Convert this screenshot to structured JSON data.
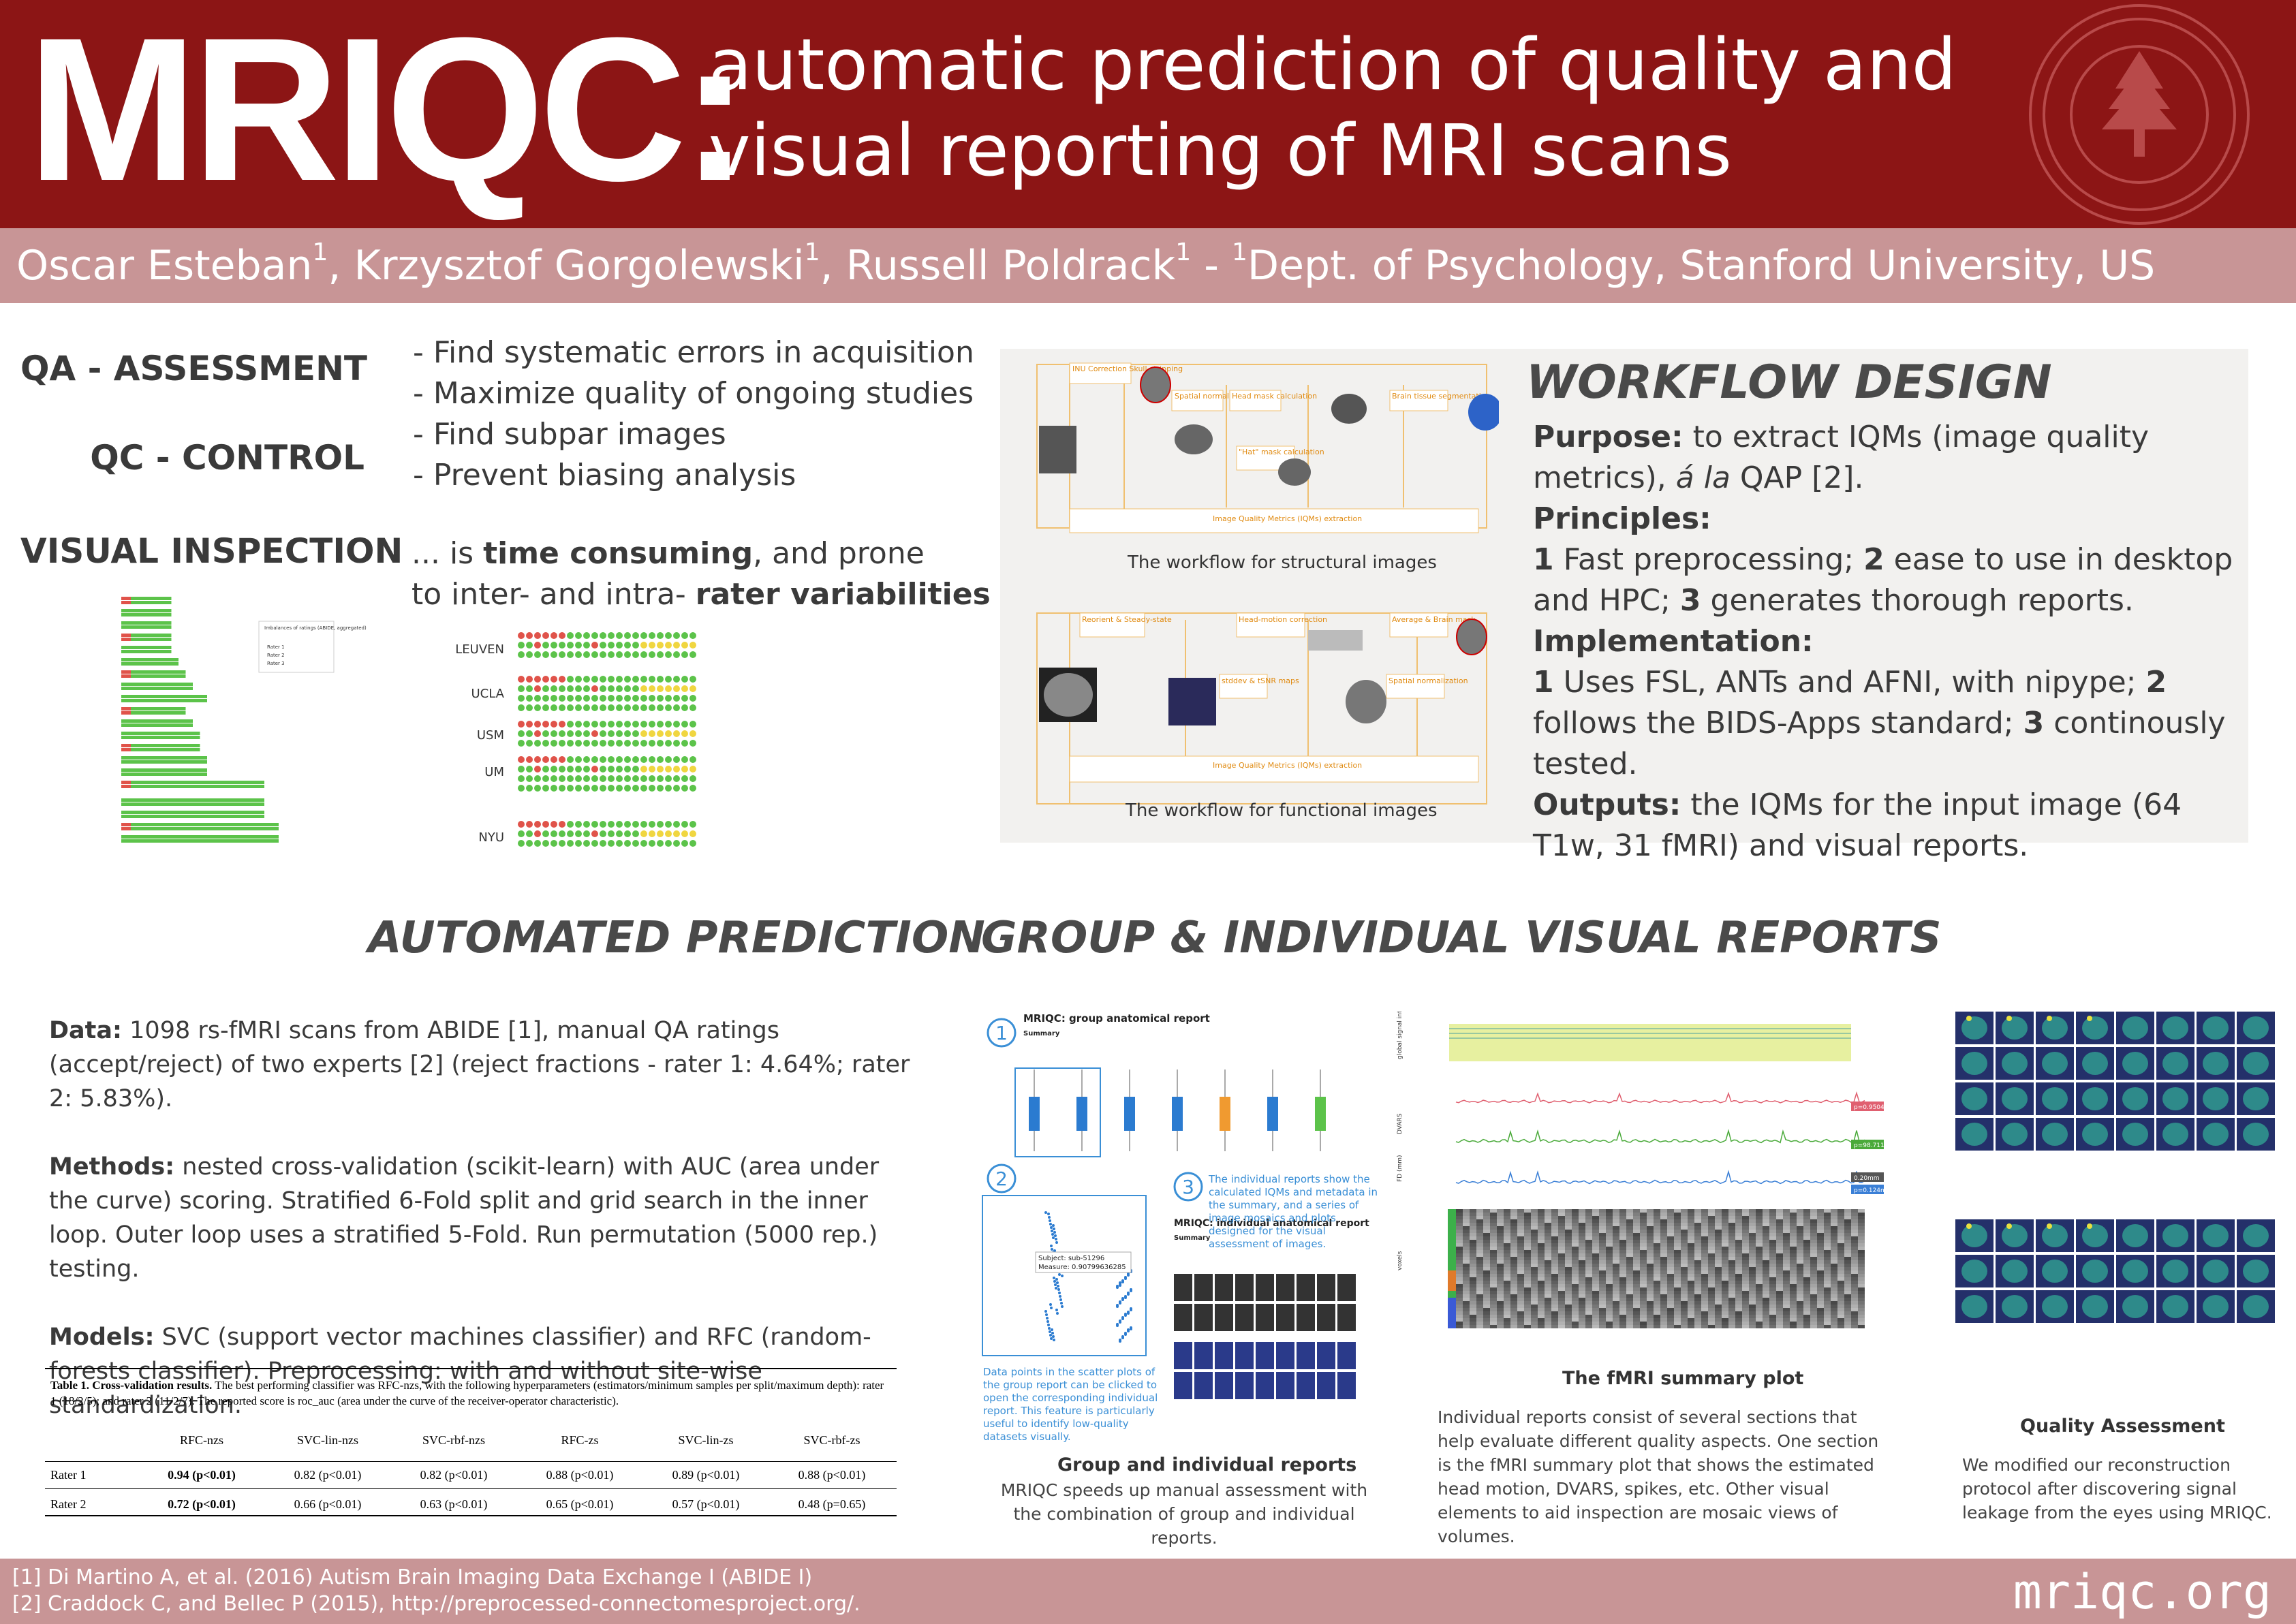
{
  "header": {
    "title": "MRIQC:",
    "subtitle": "automatic prediction of quality and visual reporting of MRI scans"
  },
  "authors": {
    "a1": "Oscar Esteban",
    "a2": ", Krzysztof Gorgolewski",
    "a3": ", Russell Poldrack",
    "a4": " - ",
    "a5": "Dept. of Psychology, Stanford University, US",
    "sup": "1"
  },
  "intro": {
    "qa_label": "QA - ASSESSMENT",
    "qc_label": "QC - CONTROL",
    "vi_label": "VISUAL INSPECTION",
    "bullets": [
      "- Find systematic errors in acquisition",
      "- Maximize quality of ongoing studies",
      "- Find subpar images",
      "- Prevent biasing analysis"
    ],
    "inspection_1": "... is ",
    "inspection_bold1": "time consuming",
    "inspection_2": ", and prone",
    "inspection_3": "to inter- and intra-  ",
    "inspection_bold2": "rater variabilities"
  },
  "ratings_figure": {
    "sites": [
      "LEUVEN",
      "UCLA",
      "USM",
      "UM",
      "NYU"
    ],
    "legend_title": "Imbalances of ratings (ABIDE, aggregated)",
    "legend_rows": [
      "Rater 1",
      "Rater 2",
      "Rater 3"
    ]
  },
  "workflow": {
    "title": "WORKFLOW DESIGN",
    "purpose_label": "Purpose:",
    "purpose_text": " to extract IQMs (image quality metrics), ",
    "purpose_italic": "á la",
    "purpose_end": " QAP [2].",
    "principles_label": "Principles:",
    "p1": " Fast preprocessing; ",
    "p2": " ease to use in desktop and HPC; ",
    "p3": " generates thorough reports.",
    "implementation_label": "Implementation:",
    "i1": " Uses FSL, ANTs and AFNI, with nipype; ",
    "i2": " follows the BIDS-Apps standard; ",
    "i3": " continously tested.",
    "outputs_label": "Outputs:",
    "outputs_text": " the IQMs for the input image (64 T1w, 31 fMRI) and visual reports.",
    "n1": "1",
    "n2": "2",
    "n3": "3",
    "struct_caption": "The workflow for structural images",
    "func_caption": "The workflow for functional images",
    "struct_nodes": [
      "INU Correction Skull-stripping",
      "Spatial normalization",
      "Head mask calculation",
      "Brain tissue segmentation",
      "\"Hat\" mask calculation",
      "Image Quality Metrics (IQMs) extraction"
    ],
    "func_nodes": [
      "Reorient & Steady-state",
      "Head-motion correction",
      "Average & Brain mask",
      "stddev & tSNR maps",
      "Spatial normalization",
      "Image Quality Metrics (IQMs) extraction"
    ]
  },
  "automated": {
    "title": "AUTOMATED PREDICTION",
    "data_label": "Data:",
    "data_text": " 1098 rs-fMRI scans from ABIDE [1], manual QA ratings  (accept/reject) of two experts [2] (reject fractions - rater 1: 4.64%; rater 2: 5.83%).",
    "methods_label": "Methods:",
    "methods_text": "  nested cross-validation (scikit-learn) with AUC (area under the curve) scoring. Stratified 6-Fold split and grid search in the inner loop. Outer loop uses a stratified 5-Fold. Run permutation (5000 rep.) testing.",
    "models_label": "Models:",
    "models_text": " SVC (support vector machines classifier) and RFC (random-forests classifier). Preprocessing: with and without site-wise standardization.",
    "table": {
      "caption_bold": "Table 1. Cross-validation results.",
      "caption_text": " The best performing classifier was RFC-nzs, with the following hyperparameters (estimators/minimum samples per split/maximum depth): rater 1 (18/2/5); and rater 2 (11/2/7). The reported score is roc_auc (area under the curve of the receiver-operator characteristic).",
      "columns": [
        "RFC-nzs",
        "SVC-lin-nzs",
        "SVC-rbf-nzs",
        "RFC-zs",
        "SVC-lin-zs",
        "SVC-rbf-zs"
      ],
      "rows": [
        {
          "label": "Rater 1",
          "cells": [
            "0.94 (p<0.01)",
            "0.82 (p<0.01)",
            "0.82 (p<0.01)",
            "0.88 (p<0.01)",
            "0.89 (p<0.01)",
            "0.88 (p<0.01)"
          ]
        },
        {
          "label": "Rater 2",
          "cells": [
            "0.72 (p<0.01)",
            "0.66 (p<0.01)",
            "0.63 (p<0.01)",
            "0.65 (p<0.01)",
            "0.57 (p<0.01)",
            "0.48 (p=0.65)"
          ]
        }
      ]
    }
  },
  "reports": {
    "title": "GROUP & INDIVIDUAL VISUAL REPORTS",
    "group_report_title": "MRIQC: group anatomical report",
    "summary": "Summary",
    "individual_report_title": "MRIQC: individual anatomical report",
    "note_3": "The individual reports show the calculated IQMs and metadata in the summary, and a series of image mosaics and plots designed for the visual assessment of images.",
    "note_2": "Data points in the scatter plots of the group report can be clicked to open the corresponding individual report. This feature is particularly useful to identify low-quality datasets visually.",
    "tooltip_subject": "Subject: sub-51296",
    "tooltip_measure": "Measure: 0.90799636285",
    "circle_1": "1",
    "circle_2": "2",
    "circle_3": "3",
    "group_head": "Group and individual reports",
    "group_text": "MRIQC speeds up manual assessment with the combination of group and individual reports.",
    "fmri_head": "The fMRI summary plot",
    "fmri_text": "Individual reports consist of several sections that help evaluate different quality aspects. One section is the fMRI summary plot that shows the estimated head motion, DVARS, spikes, etc. Other visual elements to aid inspection are mosaic views of volumes.",
    "qa_head": "Quality Assessment",
    "qa_text": "We modified our reconstruction protocol after discovering signal leakage from the eyes using MRIQC.",
    "fmri_axes": [
      "global signal intensity",
      "DVARS",
      "FD (mm)",
      "voxels"
    ],
    "fmri_badges": [
      "p=0.9504",
      "p=98.7119",
      "0.20mm",
      "p=0.124mm"
    ]
  },
  "footer": {
    "ref1": "[1] Di Martino A, et al. (2016) Autism Brain Imaging Data Exchange I (ABIDE I)",
    "ref2": "[2] Craddock C, and Bellec P (2015), http://preprocessed-connectomesproject.org/.",
    "url": "mriqc.org"
  },
  "colors": {
    "stanford_red": "#8c1515",
    "author_band": "#c89596",
    "workflow_bg": "#f2f1ef",
    "accent_blue": "#3a8fd6",
    "accept_green": "#5cc34a",
    "reject_red": "#e0534a",
    "doubt_yellow": "#f0d640"
  }
}
